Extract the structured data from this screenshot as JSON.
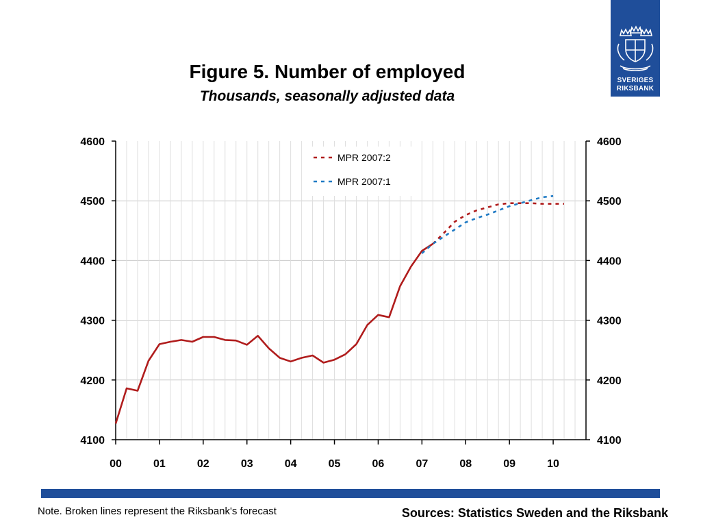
{
  "header": {
    "title": "Figure 5. Number of employed",
    "subtitle": "Thousands, seasonally adjusted data"
  },
  "logo": {
    "line1": "SVERIGES",
    "line2": "RIKSBANK",
    "icon": "riksbank-crest-icon",
    "color": "#1f4e9a"
  },
  "footer": {
    "note": "Note. Broken lines represent the Riksbank's forecast",
    "sources": "Sources: Statistics Sweden and the Riksbank"
  },
  "chart_data": {
    "type": "line",
    "title": "Figure 5. Number of employed",
    "subtitle": "Thousands, seasonally adjusted data",
    "xlabel": "",
    "ylabel": "",
    "x_tick_labels": [
      "00",
      "01",
      "02",
      "03",
      "04",
      "05",
      "06",
      "07",
      "08",
      "09",
      "10"
    ],
    "xlim": [
      2000,
      2010.75
    ],
    "ylim": [
      4100,
      4600
    ],
    "y_ticks": [
      4100,
      4200,
      4300,
      4400,
      4500,
      4600
    ],
    "y_tick_labels": [
      "4100",
      "4200",
      "4300",
      "4400",
      "4500",
      "4600"
    ],
    "grid": true,
    "legend_position": "top-center",
    "series": [
      {
        "key": "outcome",
        "style": "solid",
        "color": "#b01c1c",
        "x": [
          2000.0,
          2000.25,
          2000.5,
          2000.75,
          2001.0,
          2001.25,
          2001.5,
          2001.75,
          2002.0,
          2002.25,
          2002.5,
          2002.75,
          2003.0,
          2003.25,
          2003.5,
          2003.75,
          2004.0,
          2004.25,
          2004.5,
          2004.75,
          2005.0,
          2005.25,
          2005.5,
          2005.75,
          2006.0,
          2006.25,
          2006.5,
          2006.75,
          2007.0,
          2007.25
        ],
        "values": [
          4127,
          4186,
          4182,
          4232,
          4260,
          4264,
          4267,
          4264,
          4272,
          4272,
          4267,
          4266,
          4259,
          4274,
          4253,
          4237,
          4231,
          4237,
          4241,
          4229,
          4234,
          4243,
          4260,
          4292,
          4309,
          4305,
          4357,
          4390,
          4416,
          4428
        ]
      },
      {
        "name": "MPR 2007:2",
        "style": "dashed",
        "color": "#b01c1c",
        "x": [
          2007.25,
          2007.5,
          2007.75,
          2008.0,
          2008.25,
          2008.5,
          2008.75,
          2009.0,
          2009.25,
          2009.5,
          2009.75,
          2010.0,
          2010.25
        ],
        "values": [
          4428,
          4446,
          4465,
          4476,
          4484,
          4489,
          4494,
          4496,
          4496,
          4496,
          4495,
          4495,
          4495
        ]
      },
      {
        "name": "MPR 2007:1",
        "style": "dashed",
        "color": "#1f7ac4",
        "x": [
          2007.0,
          2007.25,
          2007.5,
          2007.75,
          2008.0,
          2008.25,
          2008.5,
          2008.75,
          2009.0,
          2009.25,
          2009.5,
          2009.75,
          2010.0
        ],
        "values": [
          4412,
          4428,
          4440,
          4452,
          4464,
          4471,
          4477,
          4484,
          4491,
          4496,
          4501,
          4506,
          4508
        ]
      }
    ]
  }
}
